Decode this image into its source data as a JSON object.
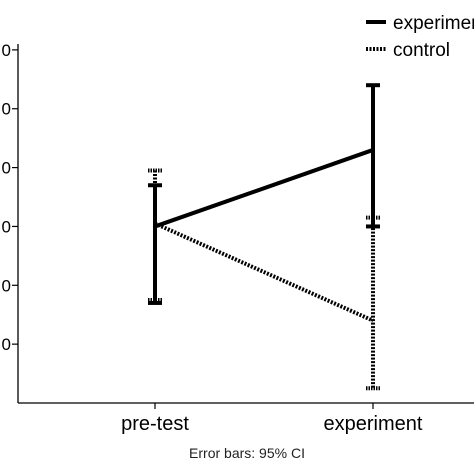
{
  "chart_data": {
    "type": "line",
    "title": "",
    "xlabel": "",
    "ylabel": "",
    "categories": [
      "pre-test",
      "experiment"
    ],
    "y_tick_labels": [
      "0",
      "0",
      "0",
      "0",
      "0",
      "0"
    ],
    "ylim": [
      0,
      6.1
    ],
    "grid": false,
    "legend_position": "top-right",
    "note": "Error bars: 95% CI",
    "series": [
      {
        "name": "experiment",
        "style": "solid",
        "color": "#000000",
        "values": [
          3.0,
          4.3
        ],
        "ci_low": [
          1.7,
          3.0
        ],
        "ci_high": [
          3.7,
          5.4
        ]
      },
      {
        "name": "control",
        "style": "dotted",
        "color": "#000000",
        "values": [
          3.05,
          1.4
        ],
        "ci_low": [
          1.75,
          0.25
        ],
        "ci_high": [
          3.95,
          3.15
        ]
      }
    ]
  }
}
